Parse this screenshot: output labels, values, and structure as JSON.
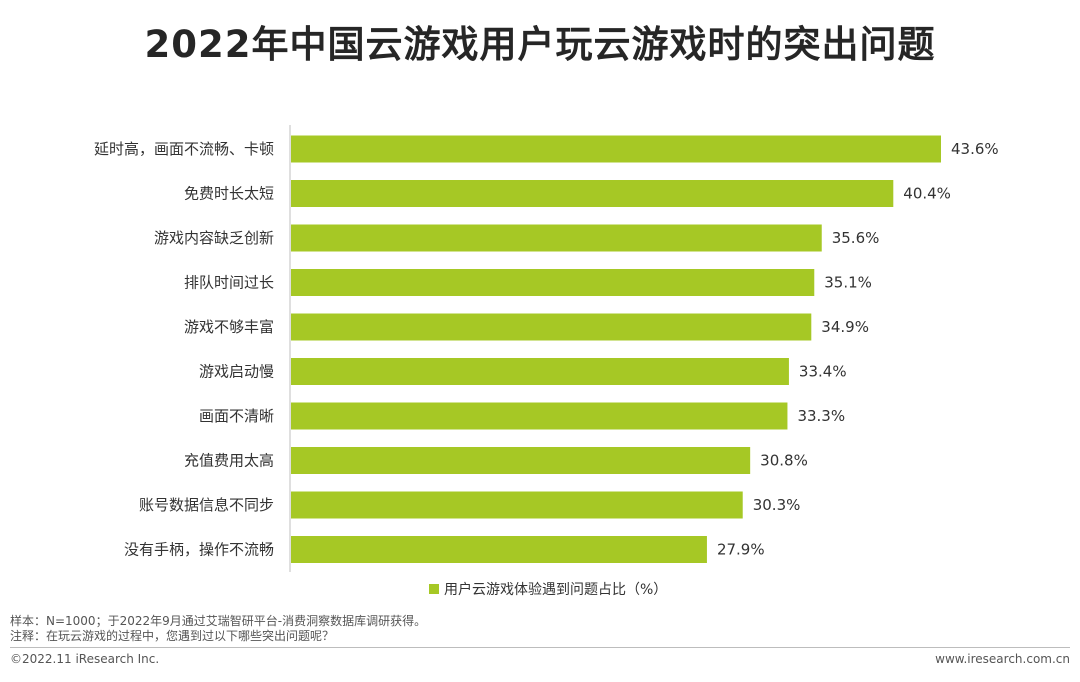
{
  "header": {
    "title": "2022年中国云游戏用户玩云游戏时的突出问题"
  },
  "colors": {
    "bar": "#a6c825",
    "axis": "#bfbfbf",
    "text": "#333333"
  },
  "chart_data": {
    "type": "bar",
    "orientation": "horizontal",
    "categories": [
      "延时高，画面不流畅、卡顿",
      "免费时长太短",
      "游戏内容缺乏创新",
      "排队时间过长",
      "游戏不够丰富",
      "游戏启动慢",
      "画面不清晰",
      "充值费用太高",
      "账号数据信息不同步",
      "没有手柄，操作不流畅"
    ],
    "series": [
      {
        "name": "用户云游戏体验遇到问题占比（%）",
        "values": [
          43.6,
          40.4,
          35.6,
          35.1,
          34.9,
          33.4,
          33.3,
          30.8,
          30.3,
          27.9
        ]
      }
    ],
    "value_labels": [
      "43.6%",
      "40.4%",
      "35.6%",
      "35.1%",
      "34.9%",
      "33.4%",
      "33.3%",
      "30.8%",
      "30.3%",
      "27.9%"
    ],
    "legend_position": "bottom-center",
    "grid": false
  },
  "notes": {
    "sample": "样本：N=1000；于2022年9月通过艾瑞智研平台-消费洞察数据库调研获得。",
    "comment": "注释：在玩云游戏的过程中，您遇到过以下哪些突出问题呢？"
  },
  "footer": {
    "copyright": "©2022.11 iResearch Inc.",
    "website": "www.iresearch.com.cn"
  }
}
